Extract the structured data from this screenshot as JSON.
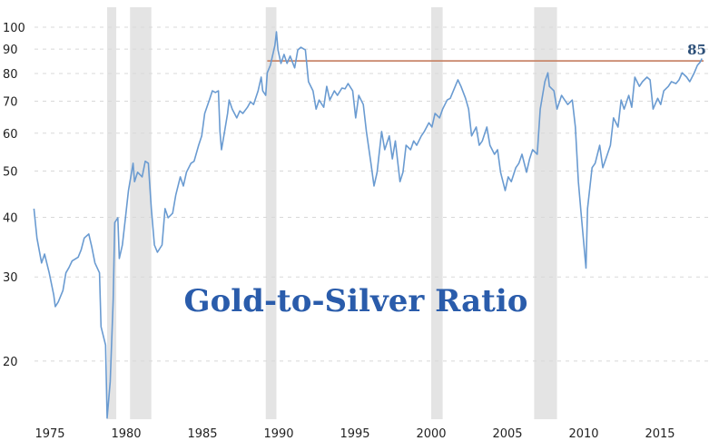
{
  "chart_data": {
    "type": "line",
    "title": "Gold-to-Silver Ratio",
    "xlabel": "",
    "ylabel": "",
    "y_scale": "log",
    "xlim": [
      1975,
      2019
    ],
    "ylim": [
      15,
      109
    ],
    "grid": true,
    "colors": {
      "line": "#6a9bd1",
      "reference": "#c8866a",
      "recession": "#e4e4e4",
      "title": "#2a5cab"
    },
    "x_ticks": [
      "1975",
      "1980",
      "1985",
      "1990",
      "1995",
      "2000",
      "2005",
      "2010",
      "2015"
    ],
    "x_tick_values": [
      1975,
      1980,
      1985,
      1990,
      1995,
      2000,
      2005,
      2010,
      2015
    ],
    "y_ticks": [
      "20",
      "30",
      "40",
      "50",
      "60",
      "70",
      "80",
      "90",
      "100"
    ],
    "y_tick_values": [
      20,
      30,
      40,
      50,
      60,
      70,
      80,
      90,
      100
    ],
    "recessions": [
      [
        1980.0,
        1980.6
      ],
      [
        1981.5,
        1982.9
      ],
      [
        1990.4,
        1991.1
      ],
      [
        2001.25,
        2002.0
      ],
      [
        2008.0,
        2009.5
      ]
    ],
    "reference_line": {
      "value": 85,
      "from": 1990.5,
      "label": "85"
    },
    "series": [
      {
        "points": [
          [
            1975.2,
            41.7
          ],
          [
            1975.4,
            36.2
          ],
          [
            1975.7,
            32.1
          ],
          [
            1975.9,
            33.5
          ],
          [
            1976.2,
            30.6
          ],
          [
            1976.5,
            27.5
          ],
          [
            1976.6,
            26.0
          ],
          [
            1976.8,
            26.6
          ],
          [
            1977.1,
            28.1
          ],
          [
            1977.3,
            30.6
          ],
          [
            1977.5,
            31.4
          ],
          [
            1977.7,
            32.4
          ],
          [
            1978.1,
            33.0
          ],
          [
            1978.3,
            34.2
          ],
          [
            1978.5,
            36.2
          ],
          [
            1978.8,
            36.9
          ],
          [
            1979.0,
            34.6
          ],
          [
            1979.2,
            32.1
          ],
          [
            1979.5,
            30.6
          ],
          [
            1979.6,
            23.6
          ],
          [
            1979.9,
            21.6
          ],
          [
            1980.0,
            15.2
          ],
          [
            1980.2,
            18.1
          ],
          [
            1980.4,
            26.9
          ],
          [
            1980.5,
            39.0
          ],
          [
            1980.7,
            39.9
          ],
          [
            1980.8,
            32.8
          ],
          [
            1981.0,
            35.0
          ],
          [
            1981.2,
            39.9
          ],
          [
            1981.4,
            45.5
          ],
          [
            1981.7,
            51.9
          ],
          [
            1981.8,
            47.5
          ],
          [
            1982.0,
            49.7
          ],
          [
            1982.3,
            48.6
          ],
          [
            1982.5,
            52.4
          ],
          [
            1982.7,
            51.9
          ],
          [
            1982.9,
            41.7
          ],
          [
            1983.1,
            35.0
          ],
          [
            1983.3,
            33.8
          ],
          [
            1983.6,
            35.0
          ],
          [
            1983.8,
            41.7
          ],
          [
            1984.0,
            39.9
          ],
          [
            1984.3,
            40.8
          ],
          [
            1984.5,
            44.5
          ],
          [
            1984.8,
            48.6
          ],
          [
            1985.0,
            46.5
          ],
          [
            1985.2,
            49.7
          ],
          [
            1985.5,
            51.9
          ],
          [
            1985.7,
            52.4
          ],
          [
            1986.0,
            56.6
          ],
          [
            1986.2,
            59.2
          ],
          [
            1986.4,
            66.0
          ],
          [
            1986.7,
            70.4
          ],
          [
            1986.9,
            73.6
          ],
          [
            1987.1,
            73.0
          ],
          [
            1987.3,
            73.6
          ],
          [
            1987.4,
            60.5
          ],
          [
            1987.5,
            55.4
          ],
          [
            1987.7,
            60.5
          ],
          [
            1987.9,
            66.0
          ],
          [
            1988.0,
            70.4
          ],
          [
            1988.2,
            67.4
          ],
          [
            1988.5,
            64.6
          ],
          [
            1988.7,
            66.8
          ],
          [
            1988.9,
            66.0
          ],
          [
            1989.2,
            68.0
          ],
          [
            1989.4,
            69.8
          ],
          [
            1989.6,
            68.9
          ],
          [
            1989.9,
            73.6
          ],
          [
            1990.1,
            78.6
          ],
          [
            1990.2,
            73.6
          ],
          [
            1990.4,
            72.0
          ],
          [
            1990.5,
            80.3
          ],
          [
            1990.7,
            83.2
          ],
          [
            1991.0,
            91.6
          ],
          [
            1991.1,
            97.8
          ],
          [
            1991.2,
            89.6
          ],
          [
            1991.4,
            84.0
          ],
          [
            1991.6,
            87.7
          ],
          [
            1991.8,
            84.0
          ],
          [
            1992.0,
            87.0
          ],
          [
            1992.3,
            82.2
          ],
          [
            1992.5,
            89.6
          ],
          [
            1992.7,
            90.8
          ],
          [
            1993.0,
            89.6
          ],
          [
            1993.2,
            76.9
          ],
          [
            1993.5,
            73.6
          ],
          [
            1993.7,
            67.4
          ],
          [
            1993.9,
            70.4
          ],
          [
            1994.2,
            68.0
          ],
          [
            1994.4,
            75.2
          ],
          [
            1994.6,
            70.4
          ],
          [
            1994.9,
            73.6
          ],
          [
            1995.1,
            72.0
          ],
          [
            1995.4,
            74.6
          ],
          [
            1995.6,
            74.3
          ],
          [
            1995.8,
            76.2
          ],
          [
            1996.1,
            73.6
          ],
          [
            1996.3,
            64.6
          ],
          [
            1996.5,
            72.0
          ],
          [
            1996.8,
            68.9
          ],
          [
            1997.0,
            60.5
          ],
          [
            1997.3,
            51.9
          ],
          [
            1997.5,
            46.5
          ],
          [
            1997.7,
            49.7
          ],
          [
            1998.0,
            60.5
          ],
          [
            1998.2,
            55.4
          ],
          [
            1998.5,
            59.2
          ],
          [
            1998.7,
            53.0
          ],
          [
            1998.9,
            57.8
          ],
          [
            1999.2,
            47.5
          ],
          [
            1999.4,
            49.7
          ],
          [
            1999.6,
            56.6
          ],
          [
            1999.9,
            55.4
          ],
          [
            2000.1,
            57.8
          ],
          [
            2000.3,
            56.6
          ],
          [
            2000.6,
            59.2
          ],
          [
            2000.8,
            60.5
          ],
          [
            2001.1,
            63.1
          ],
          [
            2001.3,
            61.8
          ],
          [
            2001.5,
            66.0
          ],
          [
            2001.8,
            64.6
          ],
          [
            2002.0,
            67.4
          ],
          [
            2002.3,
            70.4
          ],
          [
            2002.5,
            71.0
          ],
          [
            2002.7,
            73.6
          ],
          [
            2003.0,
            77.6
          ],
          [
            2003.2,
            75.2
          ],
          [
            2003.5,
            71.0
          ],
          [
            2003.7,
            67.4
          ],
          [
            2003.9,
            59.2
          ],
          [
            2004.2,
            61.8
          ],
          [
            2004.4,
            56.6
          ],
          [
            2004.6,
            57.8
          ],
          [
            2004.9,
            61.8
          ],
          [
            2005.1,
            56.6
          ],
          [
            2005.4,
            54.2
          ],
          [
            2005.6,
            55.4
          ],
          [
            2005.8,
            49.7
          ],
          [
            2006.1,
            45.5
          ],
          [
            2006.3,
            48.6
          ],
          [
            2006.5,
            47.5
          ],
          [
            2006.8,
            50.8
          ],
          [
            2007.0,
            51.9
          ],
          [
            2007.2,
            54.2
          ],
          [
            2007.5,
            49.7
          ],
          [
            2007.7,
            53.0
          ],
          [
            2007.9,
            55.4
          ],
          [
            2008.2,
            54.2
          ],
          [
            2008.4,
            67.4
          ],
          [
            2008.7,
            76.9
          ],
          [
            2008.9,
            80.3
          ],
          [
            2009.0,
            75.2
          ],
          [
            2009.3,
            73.6
          ],
          [
            2009.5,
            67.4
          ],
          [
            2009.8,
            72.0
          ],
          [
            2010.0,
            70.4
          ],
          [
            2010.2,
            68.9
          ],
          [
            2010.5,
            70.4
          ],
          [
            2010.7,
            61.8
          ],
          [
            2010.9,
            47.5
          ],
          [
            2011.1,
            40.0
          ],
          [
            2011.4,
            31.3
          ],
          [
            2011.5,
            41.7
          ],
          [
            2011.8,
            50.8
          ],
          [
            2012.0,
            51.9
          ],
          [
            2012.3,
            56.6
          ],
          [
            2012.5,
            50.8
          ],
          [
            2012.7,
            53.0
          ],
          [
            2013.0,
            56.6
          ],
          [
            2013.2,
            64.6
          ],
          [
            2013.5,
            61.8
          ],
          [
            2013.7,
            70.4
          ],
          [
            2013.9,
            67.4
          ],
          [
            2014.2,
            72.0
          ],
          [
            2014.4,
            68.0
          ],
          [
            2014.6,
            78.6
          ],
          [
            2014.9,
            75.2
          ],
          [
            2015.1,
            76.9
          ],
          [
            2015.4,
            78.6
          ],
          [
            2015.6,
            77.6
          ],
          [
            2015.8,
            67.4
          ],
          [
            2016.1,
            71.0
          ],
          [
            2016.3,
            68.9
          ],
          [
            2016.5,
            73.6
          ],
          [
            2016.8,
            75.2
          ],
          [
            2017.0,
            76.9
          ],
          [
            2017.3,
            76.2
          ],
          [
            2017.5,
            77.6
          ],
          [
            2017.7,
            80.3
          ],
          [
            2018.0,
            78.6
          ],
          [
            2018.2,
            76.9
          ],
          [
            2018.5,
            80.3
          ],
          [
            2018.7,
            83.2
          ],
          [
            2018.9,
            84.6
          ],
          [
            2019.0,
            86.0
          ]
        ]
      }
    ]
  }
}
